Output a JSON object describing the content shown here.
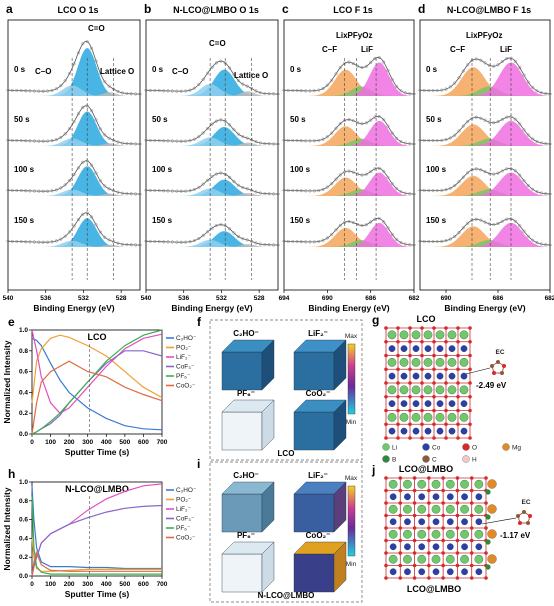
{
  "xps_panels": [
    {
      "label": "a",
      "title": "LCO O 1s",
      "xmin": 526,
      "xmax": 540,
      "ticks": [
        540,
        536,
        532,
        528
      ],
      "xlabel": "Binding Energy (eV)",
      "peaks": [
        {
          "center": 531.6,
          "height": 1.0,
          "width": 1.0,
          "color": "#29a8e0",
          "name": "C=O"
        },
        {
          "center": 533.2,
          "height": 0.22,
          "width": 1.0,
          "color": "#8fcfee",
          "name": "C–O"
        },
        {
          "center": 529.2,
          "height": 0.08,
          "width": 0.7,
          "color": "#bbbbbb",
          "name": "Lattice O"
        }
      ],
      "dashes": [
        533.2,
        531.6,
        528.8
      ]
    },
    {
      "label": "b",
      "title": "N-LCO@LMBO  O 1s",
      "xmin": 526,
      "xmax": 540,
      "ticks": [
        540,
        536,
        532,
        528
      ],
      "xlabel": "Binding Energy (eV)",
      "peaks": [
        {
          "center": 531.7,
          "height": 0.55,
          "width": 1.1,
          "color": "#29a8e0",
          "name": "C=O"
        },
        {
          "center": 533.2,
          "height": 0.25,
          "width": 1.0,
          "color": "#8fcfee",
          "name": "C–O"
        },
        {
          "center": 529.2,
          "height": 0.1,
          "width": 0.7,
          "color": "#bbbbbb",
          "name": "Lattice O"
        }
      ],
      "dashes": [
        533.2,
        531.6,
        528.8
      ]
    },
    {
      "label": "c",
      "title": "LCO F 1s",
      "xmin": 682,
      "xmax": 694,
      "ticks": [
        694,
        690,
        686,
        682
      ],
      "xlabel": "Binding Energy (eV)",
      "peaks": [
        {
          "center": 688.3,
          "height": 0.55,
          "width": 1.0,
          "color": "#f5a55a",
          "name": "C–F"
        },
        {
          "center": 686.9,
          "height": 0.2,
          "width": 0.9,
          "color": "#7ac36a",
          "name": "LixPFyOz"
        },
        {
          "center": 685.2,
          "height": 0.7,
          "width": 0.9,
          "color": "#ee6fe0",
          "name": "LiF"
        }
      ],
      "dashes": [
        688.4,
        687.3,
        685.5
      ]
    },
    {
      "label": "d",
      "title": "N-LCO@LMBO  F 1s",
      "xmin": 682,
      "xmax": 692,
      "ticks": [
        690,
        686,
        682
      ],
      "xlabel": "Binding Energy (eV)",
      "peaks": [
        {
          "center": 687.9,
          "height": 0.6,
          "width": 0.9,
          "color": "#f5a55a",
          "name": "C–F"
        },
        {
          "center": 686.7,
          "height": 0.2,
          "width": 0.8,
          "color": "#7ac36a",
          "name": "LixPFyOz"
        },
        {
          "center": 685.0,
          "height": 0.7,
          "width": 0.9,
          "color": "#ee6fe0",
          "name": "LiF"
        }
      ],
      "dashes": [
        688.0,
        686.6,
        685.0
      ]
    }
  ],
  "xps_rows": [
    "0 s",
    "50 s",
    "100 s",
    "150 s"
  ],
  "xps_labels": {
    "co": "C=O",
    "c_o": "C–O",
    "lattice": "Lattice O",
    "cf": "C–F",
    "lipfo": "LixPFyOz",
    "lif": "LiF"
  },
  "chart_data": [
    {
      "type": "line",
      "panel": "e",
      "title": "LCO",
      "xlabel": "Sputter Time (s)",
      "ylabel": "Normalized Intensity",
      "xlim": [
        0,
        700
      ],
      "ylim": [
        0,
        1.0
      ],
      "xticks": [
        0,
        100,
        200,
        300,
        400,
        500,
        600,
        700
      ],
      "yticks": [
        0.0,
        0.2,
        0.4,
        0.6,
        0.8,
        1.0
      ],
      "series": [
        {
          "name": "C2HO-",
          "color": "#3a7bd5",
          "x": [
            0,
            25,
            50,
            100,
            150,
            200,
            300,
            400,
            500,
            600,
            700
          ],
          "y": [
            0.92,
            0.9,
            0.85,
            0.68,
            0.52,
            0.4,
            0.25,
            0.15,
            0.08,
            0.05,
            0.04
          ]
        },
        {
          "name": "PO2-",
          "color": "#f0a030",
          "x": [
            0,
            25,
            50,
            100,
            150,
            200,
            300,
            400,
            500,
            600,
            700
          ],
          "y": [
            0.3,
            0.7,
            0.82,
            0.92,
            0.95,
            0.93,
            0.85,
            0.75,
            0.6,
            0.45,
            0.35
          ]
        },
        {
          "name": "LiF2-",
          "color": "#e050c0",
          "x": [
            0,
            25,
            50,
            100,
            150,
            200,
            300,
            400,
            500,
            600,
            700
          ],
          "y": [
            1.0,
            0.8,
            0.55,
            0.3,
            0.2,
            0.25,
            0.45,
            0.65,
            0.82,
            0.92,
            0.96
          ]
        },
        {
          "name": "CoF3-",
          "color": "#8866cc",
          "x": [
            0,
            25,
            50,
            100,
            150,
            200,
            300,
            400,
            500,
            600,
            700
          ],
          "y": [
            0.0,
            0.02,
            0.05,
            0.1,
            0.18,
            0.3,
            0.5,
            0.68,
            0.8,
            0.8,
            0.75
          ]
        },
        {
          "name": "PF6-",
          "color": "#3ab04a",
          "x": [
            0,
            25,
            50,
            100,
            150,
            200,
            300,
            400,
            500,
            600,
            700
          ],
          "y": [
            0.0,
            0.02,
            0.05,
            0.12,
            0.2,
            0.3,
            0.5,
            0.7,
            0.85,
            0.95,
            1.0
          ]
        },
        {
          "name": "CoO2-",
          "color": "#e06a40",
          "x": [
            0,
            25,
            50,
            100,
            150,
            200,
            300,
            400,
            500,
            600,
            700
          ],
          "y": [
            0.0,
            0.3,
            0.5,
            0.6,
            0.65,
            0.7,
            0.6,
            0.55,
            0.45,
            0.38,
            0.32
          ]
        }
      ]
    },
    {
      "type": "line",
      "panel": "h",
      "title": "N-LCO@LMBO",
      "xlabel": "Sputter Time (s)",
      "ylabel": "Normalized Intensity",
      "xlim": [
        0,
        700
      ],
      "ylim": [
        0,
        1.0
      ],
      "xticks": [
        0,
        100,
        200,
        300,
        400,
        500,
        600,
        700
      ],
      "yticks": [
        0.0,
        0.2,
        0.4,
        0.6,
        0.8,
        1.0
      ],
      "series": [
        {
          "name": "C2HO-",
          "color": "#3a7bd5",
          "x": [
            0,
            10,
            25,
            50,
            100,
            200,
            300,
            400,
            500,
            600,
            700
          ],
          "y": [
            0.96,
            0.6,
            0.3,
            0.15,
            0.1,
            0.1,
            0.09,
            0.09,
            0.08,
            0.08,
            0.08
          ]
        },
        {
          "name": "PO2-",
          "color": "#f0a030",
          "x": [
            0,
            10,
            25,
            50,
            100,
            200,
            300,
            400,
            500,
            600,
            700
          ],
          "y": [
            0.4,
            0.2,
            0.08,
            0.05,
            0.05,
            0.06,
            0.07,
            0.07,
            0.07,
            0.07,
            0.07
          ]
        },
        {
          "name": "LiF2-",
          "color": "#e050c0",
          "x": [
            0,
            10,
            25,
            50,
            100,
            200,
            300,
            400,
            500,
            600,
            700
          ],
          "y": [
            0.0,
            0.1,
            0.2,
            0.35,
            0.45,
            0.55,
            0.7,
            0.82,
            0.9,
            0.96,
            0.98
          ]
        },
        {
          "name": "CoF3-",
          "color": "#8866cc",
          "x": [
            0,
            10,
            25,
            50,
            100,
            200,
            300,
            400,
            500,
            600,
            700
          ],
          "y": [
            0.0,
            0.1,
            0.2,
            0.35,
            0.45,
            0.55,
            0.62,
            0.68,
            0.72,
            0.74,
            0.75
          ]
        },
        {
          "name": "PF6-",
          "color": "#3ab04a",
          "x": [
            0,
            10,
            25,
            50,
            100,
            200,
            300,
            400,
            500,
            600,
            700
          ],
          "y": [
            0.85,
            0.3,
            0.1,
            0.04,
            0.02,
            0.02,
            0.02,
            0.02,
            0.02,
            0.02,
            0.02
          ]
        },
        {
          "name": "CoO2-",
          "color": "#e06a40",
          "x": [
            0,
            10,
            25,
            50,
            100,
            200,
            300,
            400,
            500,
            600,
            700
          ],
          "y": [
            0.0,
            0.15,
            0.25,
            0.12,
            0.06,
            0.05,
            0.05,
            0.05,
            0.05,
            0.05,
            0.05
          ]
        }
      ]
    }
  ],
  "legend_labels": [
    "C₂HO⁻",
    "PO₂⁻",
    "LiF₂⁻",
    "CoF₃⁻",
    "PF₆⁻",
    "CoO₂⁻"
  ],
  "tof_f": {
    "label": "f",
    "cubes": [
      "C₂HO⁻",
      "LiF₂⁻",
      "PF₆⁻",
      "CoO₂⁻"
    ],
    "sample": "LCO",
    "max": "Max",
    "min": "Min"
  },
  "tof_i": {
    "label": "i",
    "cubes": [
      "C₂HO⁻",
      "LiF₂⁻",
      "PF₆⁻",
      "CoO₂⁻"
    ],
    "sample": "N-LCO@LMBO",
    "max": "Max",
    "min": "Min"
  },
  "dft_g": {
    "label": "g",
    "title": "LCO",
    "energy": "-2.49 eV",
    "molecule": "EC"
  },
  "dft_j": {
    "label": "j",
    "title": "LCO@LMBO",
    "energy": "-1.17 eV",
    "molecule": "EC"
  },
  "atom_legend": [
    {
      "name": "Li",
      "color": "#6fc96a"
    },
    {
      "name": "Co",
      "color": "#2a3fa8"
    },
    {
      "name": "O",
      "color": "#d82a2a"
    },
    {
      "name": "Mg",
      "color": "#e08a2a"
    },
    {
      "name": "B",
      "color": "#2c8a3a"
    },
    {
      "name": "C",
      "color": "#8a5a3a"
    },
    {
      "name": "H",
      "color": "#f0c8c8"
    }
  ]
}
